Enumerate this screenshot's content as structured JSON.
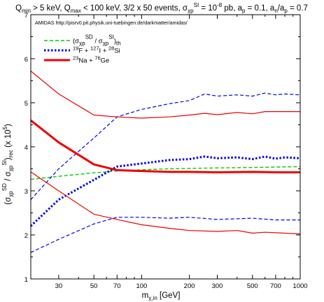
{
  "chart_data": {
    "type": "line",
    "title": "Q_min > 5 keV, Q_max < 100 keV, 3/2 x 50 events, σ_χp^SI = 10^-8 pb, a_p = 0.1, a_n/a_p = 0.7",
    "annotation": "AMIDAS   http://pisrv0.pit.physik.uni-tuebingen.de/darkmatter/amidas/",
    "xlabel": "m_χ,in [GeV]",
    "ylabel": "(σ_χp^SD / σ_χp^SI)_rec (x 10^5)",
    "xscale": "log",
    "xlim": [
      20,
      1000
    ],
    "ylim": [
      1,
      7
    ],
    "xticks": [
      30,
      50,
      70,
      100,
      200,
      300,
      500,
      700,
      1000
    ],
    "yticks": [
      1,
      2,
      3,
      4,
      5,
      6,
      7
    ],
    "grid": false,
    "legend_position": "top-left",
    "legend": [
      {
        "label": "(σ_χp^SD / σ_χp^SI)_th",
        "color": "#00cc00",
        "style": "dashed",
        "width": 1.5
      },
      {
        "label": "19F + 127I + 28Si",
        "color": "#0000ee",
        "style": "dotted",
        "width": 3
      },
      {
        "label": "23Na + 76Ge",
        "color": "#ee0000",
        "style": "solid",
        "width": 3
      }
    ],
    "series": [
      {
        "name": "(σ_χp^SD / σ_χp^SI)_th",
        "color": "#00cc00",
        "style": "dashed",
        "width": 1.4,
        "x": [
          20,
          30,
          50,
          70,
          100,
          150,
          200,
          300,
          500,
          700,
          1000
        ],
        "y": [
          3.26,
          3.33,
          3.41,
          3.45,
          3.48,
          3.5,
          3.51,
          3.52,
          3.53,
          3.54,
          3.55
        ]
      },
      {
        "name": "19F + 127I + 28Si median",
        "color": "#0000ee",
        "style": "dotted",
        "width": 3,
        "x": [
          20,
          30,
          50,
          70,
          100,
          150,
          200,
          250,
          300,
          400,
          500,
          600,
          700,
          800,
          1000
        ],
        "y": [
          2.2,
          2.8,
          3.25,
          3.55,
          3.62,
          3.7,
          3.72,
          3.78,
          3.74,
          3.76,
          3.72,
          3.78,
          3.73,
          3.76,
          3.74
        ]
      },
      {
        "name": "19F + 127I + 28Si upper",
        "color": "#0000ee",
        "style": "dashed",
        "width": 1.2,
        "x": [
          20,
          30,
          50,
          70,
          100,
          150,
          200,
          250,
          300,
          400,
          500,
          600,
          700,
          800,
          1000
        ],
        "y": [
          2.8,
          3.5,
          4.2,
          4.68,
          4.85,
          4.98,
          5.05,
          5.2,
          5.15,
          5.18,
          5.15,
          5.22,
          5.18,
          5.2,
          5.18
        ]
      },
      {
        "name": "19F + 127I + 28Si lower",
        "color": "#0000ee",
        "style": "dashed",
        "width": 1.2,
        "x": [
          20,
          30,
          50,
          70,
          100,
          150,
          200,
          300,
          500,
          700,
          1000
        ],
        "y": [
          1.6,
          1.9,
          2.25,
          2.4,
          2.4,
          2.38,
          2.4,
          2.35,
          2.38,
          2.34,
          2.34
        ]
      },
      {
        "name": "23Na + 76Ge median",
        "color": "#ee0000",
        "style": "solid",
        "width": 3,
        "x": [
          20,
          30,
          50,
          70,
          100,
          150,
          200,
          300,
          500,
          700,
          1000
        ],
        "y": [
          4.6,
          4.1,
          3.6,
          3.47,
          3.45,
          3.43,
          3.43,
          3.42,
          3.43,
          3.42,
          3.42
        ]
      },
      {
        "name": "23Na + 76Ge upper",
        "color": "#ee0000",
        "style": "solid",
        "width": 1.2,
        "x": [
          20,
          30,
          50,
          70,
          100,
          150,
          200,
          250,
          300,
          400,
          500,
          600,
          700,
          1000
        ],
        "y": [
          5.72,
          5.2,
          4.72,
          4.68,
          4.65,
          4.68,
          4.72,
          4.76,
          4.73,
          4.78,
          4.75,
          4.8,
          4.8,
          4.8
        ]
      },
      {
        "name": "23Na + 76Ge lower",
        "color": "#ee0000",
        "style": "solid",
        "width": 1.2,
        "x": [
          20,
          30,
          50,
          70,
          100,
          150,
          200,
          300,
          400,
          500,
          600,
          700,
          1000
        ],
        "y": [
          3.43,
          3.0,
          2.47,
          2.35,
          2.23,
          2.15,
          2.1,
          2.08,
          2.1,
          2.04,
          2.06,
          2.05,
          2.02
        ]
      }
    ]
  }
}
